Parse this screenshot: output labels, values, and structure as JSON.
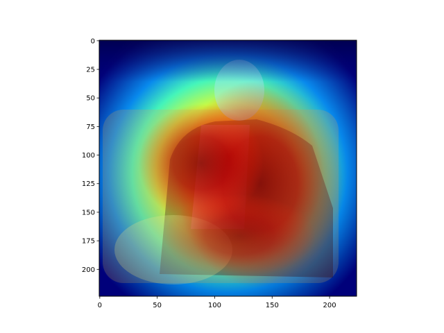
{
  "chart_data": {
    "type": "heatmap",
    "title": "",
    "xlabel": "",
    "ylabel": "",
    "xlim": [
      0,
      224
    ],
    "ylim": [
      224,
      0
    ],
    "x_ticks": [
      0,
      50,
      100,
      150,
      200
    ],
    "y_ticks": [
      0,
      25,
      50,
      75,
      100,
      125,
      150,
      175,
      200
    ],
    "x_tick_labels": [
      "0",
      "50",
      "100",
      "150",
      "200"
    ],
    "y_tick_labels": [
      "0",
      "25",
      "50",
      "75",
      "100",
      "125",
      "150",
      "175",
      "200"
    ],
    "colormap": "jet",
    "overlay": "saliency heatmap over portrait photograph of a seated elderly man",
    "hotspots": [
      {
        "x": 140,
        "y": 130,
        "intensity": 1.0
      },
      {
        "x": 90,
        "y": 112,
        "intensity": 0.9
      },
      {
        "x": 120,
        "y": 175,
        "intensity": 0.75
      }
    ],
    "colors": {
      "low": "#00007f",
      "mid_low": "#00a9ff",
      "mid": "#7fff7f",
      "mid_high": "#ffd200",
      "high": "#7f0000"
    }
  }
}
